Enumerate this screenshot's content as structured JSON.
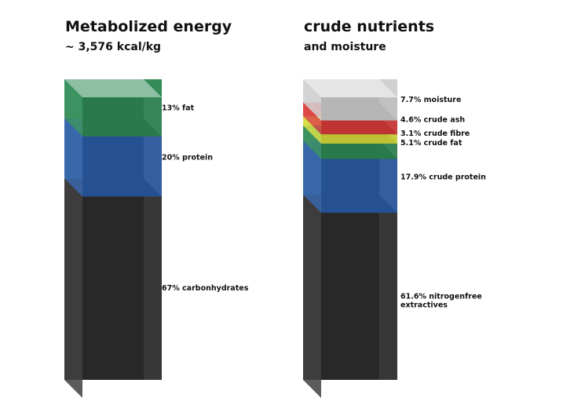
{
  "chart_data": [
    {
      "type": "stacked-column",
      "title": "Metabolized energy",
      "subtitle": "~ 3,576 kcal/kg",
      "unit": "%",
      "segments": [
        {
          "label": "67% carbonhydrates",
          "value": 67,
          "color": "#2e2e2e"
        },
        {
          "label": "20% protein",
          "value": 20,
          "color": "#2a5ca6"
        },
        {
          "label": "13% fat",
          "value": 13,
          "color": "#2f8a55"
        }
      ]
    },
    {
      "type": "stacked-column",
      "title": "crude nutrients",
      "subtitle": "and moisture",
      "unit": "%",
      "segments": [
        {
          "label": "61.6% nitrogenfree extractives",
          "value": 61.6,
          "color": "#2e2e2e"
        },
        {
          "label": "17.9% crude protein",
          "value": 17.9,
          "color": "#2a5ca6"
        },
        {
          "label": "5.1% crude fat",
          "value": 5.1,
          "color": "#2f8a55"
        },
        {
          "label": "3.1% crude fibre",
          "value": 3.1,
          "color": "#d6dc3a"
        },
        {
          "label": "4.6% crude ash",
          "value": 4.6,
          "color": "#d93a3a"
        },
        {
          "label": "7.7% moisture",
          "value": 7.7,
          "color": "#cfcfcf"
        }
      ]
    }
  ]
}
